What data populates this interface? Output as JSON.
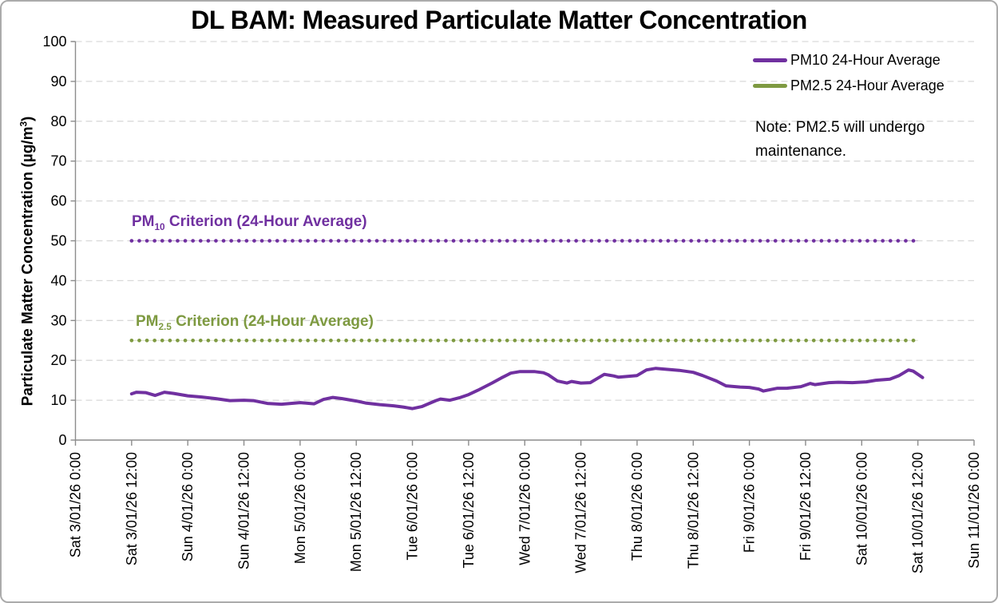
{
  "title": "DL BAM: Measured Particulate Matter Concentration",
  "note": "Note: PM2.5 will undergo maintenance.",
  "y_axis_title": {
    "pre": "Particulate Matter Concentration (µg/m",
    "sup": "3",
    "post": ")"
  },
  "legend": {
    "position": "top-right-inside",
    "items": [
      {
        "label": "PM10 24-Hour Average",
        "color": "#7030A0"
      },
      {
        "label": "PM2.5 24-Hour Average",
        "color": "#7E9A41"
      }
    ]
  },
  "annotations": {
    "pm10_criterion": {
      "prefix": "PM",
      "sub": "10",
      "rest": " Criterion (24-Hour Average)",
      "value": 50,
      "color": "#7030A0"
    },
    "pm25_criterion": {
      "prefix": "PM",
      "sub": "2.5",
      "rest": " Criterion (24-Hour Average)",
      "value": 25,
      "color": "#7E9A41"
    }
  },
  "colors": {
    "pm10_series": "#7030A0",
    "pm25_series": "#7E9A41",
    "gridline": "#D9D9D9",
    "axis": "#8C8C8C",
    "text": "#000000",
    "background": "#FFFFFF",
    "border": "#ABABAB"
  },
  "chart_data": {
    "type": "line",
    "title": "DL BAM: Measured Particulate Matter Concentration",
    "xlabel": "",
    "ylabel": "Particulate Matter Concentration (µg/m³)",
    "ylim": [
      0,
      100
    ],
    "y_ticks": [
      0,
      10,
      20,
      30,
      40,
      50,
      60,
      70,
      80,
      90,
      100
    ],
    "grid": "horizontal-dashed",
    "legend_position": "top-right-inside",
    "x_total_hours": 192,
    "x_hours_per_tick": 12,
    "x_tick_labels": [
      "Sat 3/01/26 0:00",
      "Sat 3/01/26 12:00",
      "Sun 4/01/26 0:00",
      "Sun 4/01/26 12:00",
      "Mon 5/01/26 0:00",
      "Mon 5/01/26 12:00",
      "Tue 6/01/26 0:00",
      "Tue 6/01/26 12:00",
      "Wed 7/01/26 0:00",
      "Wed 7/01/26 12:00",
      "Thu 8/01/26 0:00",
      "Thu 8/01/26 12:00",
      "Fri 9/01/26 0:00",
      "Fri 9/01/26 12:00",
      "Sat 10/01/26 0:00",
      "Sat 10/01/26 12:00",
      "Sun 11/01/26 0:00"
    ],
    "series": [
      {
        "id": "pm10-24-hour-average-line",
        "name": "PM10 24-Hour Average",
        "color": "#7030A0",
        "style": "solid",
        "width": 4,
        "points": [
          [
            12,
            11.6
          ],
          [
            13,
            12.0
          ],
          [
            15,
            11.9
          ],
          [
            17,
            11.2
          ],
          [
            19,
            12.0
          ],
          [
            21,
            11.7
          ],
          [
            24,
            11.1
          ],
          [
            27,
            10.8
          ],
          [
            30,
            10.4
          ],
          [
            33,
            9.9
          ],
          [
            36,
            10.0
          ],
          [
            38,
            9.9
          ],
          [
            41,
            9.2
          ],
          [
            44,
            9.0
          ],
          [
            46,
            9.2
          ],
          [
            48,
            9.4
          ],
          [
            51,
            9.1
          ],
          [
            53,
            10.2
          ],
          [
            55,
            10.7
          ],
          [
            57,
            10.4
          ],
          [
            60,
            9.8
          ],
          [
            62,
            9.3
          ],
          [
            65,
            8.9
          ],
          [
            68,
            8.6
          ],
          [
            70,
            8.3
          ],
          [
            72,
            7.9
          ],
          [
            74,
            8.4
          ],
          [
            77,
            9.9
          ],
          [
            78,
            10.3
          ],
          [
            80,
            10.0
          ],
          [
            82,
            10.6
          ],
          [
            84,
            11.4
          ],
          [
            86,
            12.5
          ],
          [
            89,
            14.3
          ],
          [
            91,
            15.6
          ],
          [
            93,
            16.8
          ],
          [
            95,
            17.2
          ],
          [
            98,
            17.2
          ],
          [
            100,
            16.9
          ],
          [
            101,
            16.4
          ],
          [
            103,
            14.8
          ],
          [
            105,
            14.3
          ],
          [
            106,
            14.7
          ],
          [
            108,
            14.3
          ],
          [
            110,
            14.4
          ],
          [
            112,
            15.8
          ],
          [
            113,
            16.5
          ],
          [
            115,
            16.1
          ],
          [
            116,
            15.8
          ],
          [
            118,
            16.0
          ],
          [
            120,
            16.2
          ],
          [
            122,
            17.6
          ],
          [
            124,
            18.0
          ],
          [
            127,
            17.7
          ],
          [
            129,
            17.5
          ],
          [
            132,
            17.0
          ],
          [
            134,
            16.2
          ],
          [
            137,
            14.8
          ],
          [
            139,
            13.6
          ],
          [
            142,
            13.3
          ],
          [
            144,
            13.2
          ],
          [
            146,
            12.8
          ],
          [
            147,
            12.3
          ],
          [
            150,
            13.0
          ],
          [
            152,
            13.0
          ],
          [
            155,
            13.4
          ],
          [
            157,
            14.2
          ],
          [
            158,
            13.9
          ],
          [
            161,
            14.4
          ],
          [
            163,
            14.5
          ],
          [
            166,
            14.4
          ],
          [
            169,
            14.6
          ],
          [
            171,
            15.0
          ],
          [
            174,
            15.3
          ],
          [
            176,
            16.2
          ],
          [
            178,
            17.6
          ],
          [
            179,
            17.3
          ],
          [
            180,
            16.5
          ],
          [
            181,
            15.7
          ]
        ]
      },
      {
        "id": "pm10-criterion-line",
        "name": "PM10 Criterion (24-Hour Average)",
        "color": "#7030A0",
        "style": "dotted",
        "width": 4.6,
        "points": [
          [
            12,
            50
          ],
          [
            180,
            50
          ]
        ]
      },
      {
        "id": "pm25-criterion-line",
        "name": "PM2.5 Criterion (24-Hour Average)",
        "color": "#7E9A41",
        "style": "dotted",
        "width": 4.6,
        "points": [
          [
            12,
            25
          ],
          [
            180,
            25
          ]
        ]
      }
    ]
  }
}
